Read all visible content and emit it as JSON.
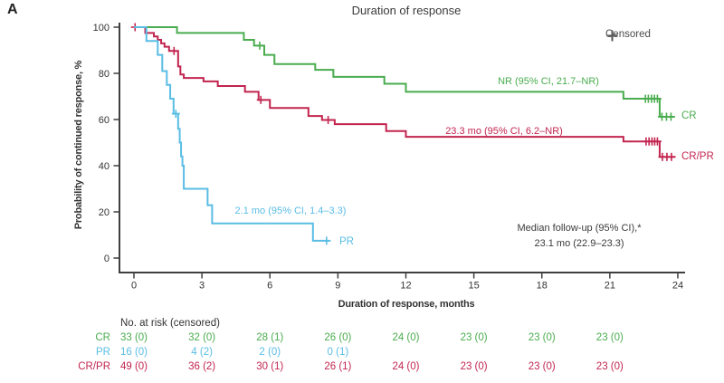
{
  "panel_label": "A",
  "title": "Duration of response",
  "legend": {
    "icon": "plus-censor-icon",
    "censored_label": "Censored"
  },
  "colors": {
    "cr": "#4aac4f",
    "crpr": "#c2254f",
    "pr": "#5abde4",
    "axis": "#3f3f3f",
    "text": "#3a3a3a",
    "legend_plus": "#555555"
  },
  "annotations": {
    "cr_median": "NR (95% CI, 21.7–NR)",
    "crpr_median": "23.3 mo (95% CI, 6.2–NR)",
    "pr_median": "2.1 mo (95% CI, 1.4–3.3)",
    "followup_line1": "Median follow-up (95% CI),*",
    "followup_line2": "23.1 mo (22.9–23.3)"
  },
  "chart_data": {
    "type": "line",
    "subtype": "kaplan-meier-step",
    "title": "Duration of response",
    "xlabel": "Duration of response, months",
    "ylabel": "Probability of continued response, %",
    "xlim": [
      0,
      24
    ],
    "ylim": [
      0,
      100
    ],
    "x_ticks": [
      0,
      3,
      6,
      9,
      12,
      15,
      18,
      21,
      24
    ],
    "y_ticks": [
      0,
      20,
      40,
      60,
      80,
      100
    ],
    "grid": false,
    "legend_position": "top-right",
    "series": [
      {
        "name": "CR",
        "color": "#4aac4f",
        "end_label": "CR",
        "median_label": "NR (95% CI, 21.7–NR)",
        "steps": [
          [
            0,
            100
          ],
          [
            1.9,
            97.5
          ],
          [
            4.85,
            94.5
          ],
          [
            5.3,
            92
          ],
          [
            5.75,
            88
          ],
          [
            6.2,
            84
          ],
          [
            8.0,
            81.5
          ],
          [
            8.8,
            78.5
          ],
          [
            11.05,
            75.5
          ],
          [
            12.0,
            72
          ],
          [
            21.6,
            69
          ],
          [
            23.2,
            61.2
          ]
        ],
        "end_month": 23.85,
        "censors": [
          [
            5.55,
            92
          ],
          [
            22.57,
            69
          ],
          [
            22.7,
            69
          ],
          [
            22.84,
            69
          ],
          [
            22.97,
            69
          ],
          [
            23.1,
            69
          ],
          [
            23.3,
            61.2
          ],
          [
            23.5,
            61.2
          ],
          [
            23.7,
            61.2
          ]
        ]
      },
      {
        "name": "CR/PR",
        "color": "#c2254f",
        "end_label": "CR/PR",
        "median_label": "23.3 mo (95% CI, 6.2–NR)",
        "steps": [
          [
            0,
            100
          ],
          [
            0.5,
            97.5
          ],
          [
            0.88,
            96
          ],
          [
            1.05,
            94.5
          ],
          [
            1.2,
            93
          ],
          [
            1.35,
            91.5
          ],
          [
            1.55,
            89.7
          ],
          [
            1.95,
            83
          ],
          [
            2.05,
            79.5
          ],
          [
            2.2,
            78
          ],
          [
            3.07,
            76.5
          ],
          [
            3.7,
            74.5
          ],
          [
            4.9,
            72
          ],
          [
            5.5,
            68.5
          ],
          [
            6.0,
            65
          ],
          [
            7.7,
            61.5
          ],
          [
            8.3,
            59.8
          ],
          [
            8.86,
            58
          ],
          [
            11.13,
            55
          ],
          [
            12.0,
            52.5
          ],
          [
            21.6,
            50.5
          ],
          [
            23.2,
            43.8
          ]
        ],
        "end_month": 23.9,
        "censors": [
          [
            0.05,
            100
          ],
          [
            1.77,
            89.7
          ],
          [
            5.6,
            68.5
          ],
          [
            8.57,
            59.8
          ],
          [
            22.6,
            50.5
          ],
          [
            22.73,
            50.5
          ],
          [
            22.86,
            50.5
          ],
          [
            22.98,
            50.5
          ],
          [
            23.1,
            50.5
          ],
          [
            23.32,
            43.8
          ],
          [
            23.52,
            43.8
          ],
          [
            23.72,
            43.8
          ]
        ]
      },
      {
        "name": "PR",
        "color": "#5abde4",
        "end_label": "PR",
        "median_label": "2.1 mo (95% CI, 1.4–3.3)",
        "steps": [
          [
            0,
            100
          ],
          [
            0.55,
            94
          ],
          [
            1.05,
            88
          ],
          [
            1.25,
            81
          ],
          [
            1.45,
            75
          ],
          [
            1.6,
            69
          ],
          [
            1.75,
            62.5
          ],
          [
            1.95,
            56
          ],
          [
            2.02,
            50
          ],
          [
            2.08,
            44
          ],
          [
            2.14,
            40
          ],
          [
            2.2,
            30
          ],
          [
            3.25,
            22.9
          ],
          [
            3.45,
            15
          ],
          [
            7.9,
            7.5
          ]
        ],
        "end_month": 8.65,
        "censors": [
          [
            1.85,
            62.5
          ],
          [
            8.5,
            7.5
          ]
        ]
      }
    ]
  },
  "risk_table": {
    "header": "No. at risk (censored)",
    "months": [
      0,
      3,
      6,
      9,
      12,
      15,
      18,
      21
    ],
    "rows": [
      {
        "label": "CR",
        "color": "#4aac4f",
        "values": [
          "33 (0)",
          "32 (0)",
          "28 (1)",
          "26 (0)",
          "24 (0)",
          "23 (0)",
          "23 (0)",
          "23 (0)"
        ]
      },
      {
        "label": "PR",
        "color": "#5abde4",
        "values": [
          "16 (0)",
          "4 (2)",
          "2 (0)",
          "0 (1)",
          "",
          "",
          "",
          ""
        ]
      },
      {
        "label": "CR/PR",
        "color": "#c2254f",
        "values": [
          "49 (0)",
          "36 (2)",
          "30 (1)",
          "26 (1)",
          "24 (0)",
          "23 (0)",
          "23 (0)",
          "23 (0)"
        ]
      }
    ]
  }
}
